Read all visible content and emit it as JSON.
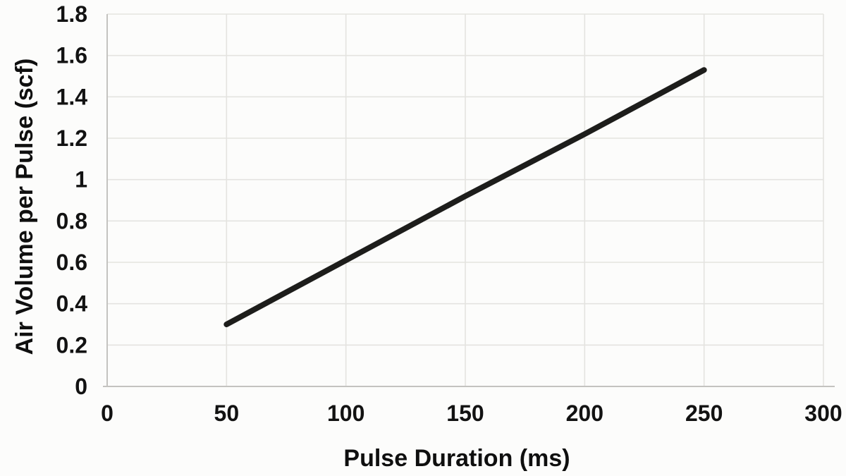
{
  "chart_data": {
    "type": "line",
    "title": "",
    "xlabel": "Pulse Duration (ms)",
    "ylabel": "Air Volume per Pulse (scf)",
    "xlim": [
      0,
      300
    ],
    "ylim": [
      0,
      1.8
    ],
    "x_ticks": [
      0,
      50,
      100,
      150,
      200,
      250,
      300
    ],
    "x_tick_labels": [
      "0",
      "50",
      "100",
      "150",
      "200",
      "250",
      "300"
    ],
    "y_ticks": [
      0,
      0.2,
      0.4,
      0.6,
      0.8,
      1,
      1.2,
      1.4,
      1.6,
      1.8
    ],
    "y_tick_labels": [
      "0",
      "0.2",
      "0.4",
      "0.6",
      "0.8",
      "1",
      "1.2",
      "1.4",
      "1.6",
      "1.8"
    ],
    "grid": true,
    "legend_position": "none",
    "series": [
      {
        "name": "air-volume-per-pulse",
        "x": [
          50,
          100,
          150,
          200,
          250
        ],
        "y": [
          0.3,
          0.61,
          0.92,
          1.22,
          1.53
        ]
      }
    ]
  },
  "colors": {
    "background": "#fcfcfb",
    "series_line": "#1d1d1b",
    "gridline": "#e4e3e0",
    "axis_line": "#c4c3c0",
    "label_text": "#121212"
  }
}
